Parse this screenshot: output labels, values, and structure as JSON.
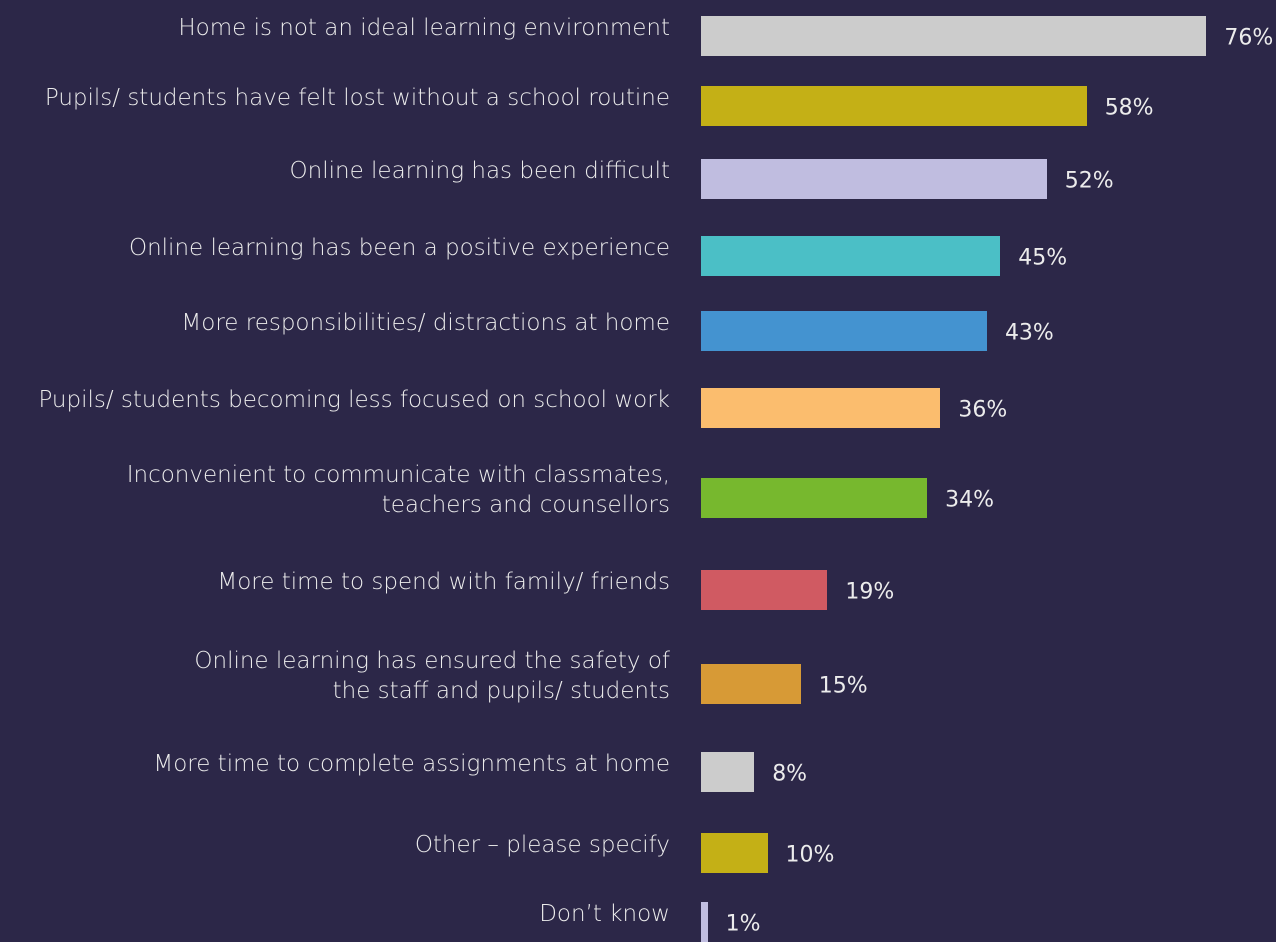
{
  "chart_data": {
    "type": "bar",
    "orientation": "horizontal",
    "categories": [
      "Home is not an ideal learning environment",
      "Pupils/ students have felt lost without a school routine",
      "Online learning has been difficult",
      "Online learning has been a positive experience",
      "More responsibilities/ distractions at home",
      "Pupils/ students becoming less focused on school work",
      "Inconvenient to communicate with classmates,\nteachers and counsellors",
      "More time to spend with family/ friends",
      "Online learning has ensured the safety of\nthe staff and pupils/ students",
      "More time to complete assignments at home",
      "Other – please specify",
      "Don’t know"
    ],
    "values": [
      76,
      58,
      52,
      45,
      43,
      36,
      34,
      19,
      15,
      8,
      10,
      1
    ],
    "value_labels": [
      "76%",
      "58%",
      "52%",
      "45%",
      "43%",
      "36%",
      "34%",
      "19%",
      "15%",
      "8%",
      "10%",
      "1%"
    ],
    "colors": [
      "#cccccc",
      "#c4b016",
      "#c0bde0",
      "#4bbfc6",
      "#4493d0",
      "#fbbd6e",
      "#77b82e",
      "#d05a62",
      "#d79a36",
      "#cccccc",
      "#c4b016",
      "#c0bde0"
    ]
  }
}
